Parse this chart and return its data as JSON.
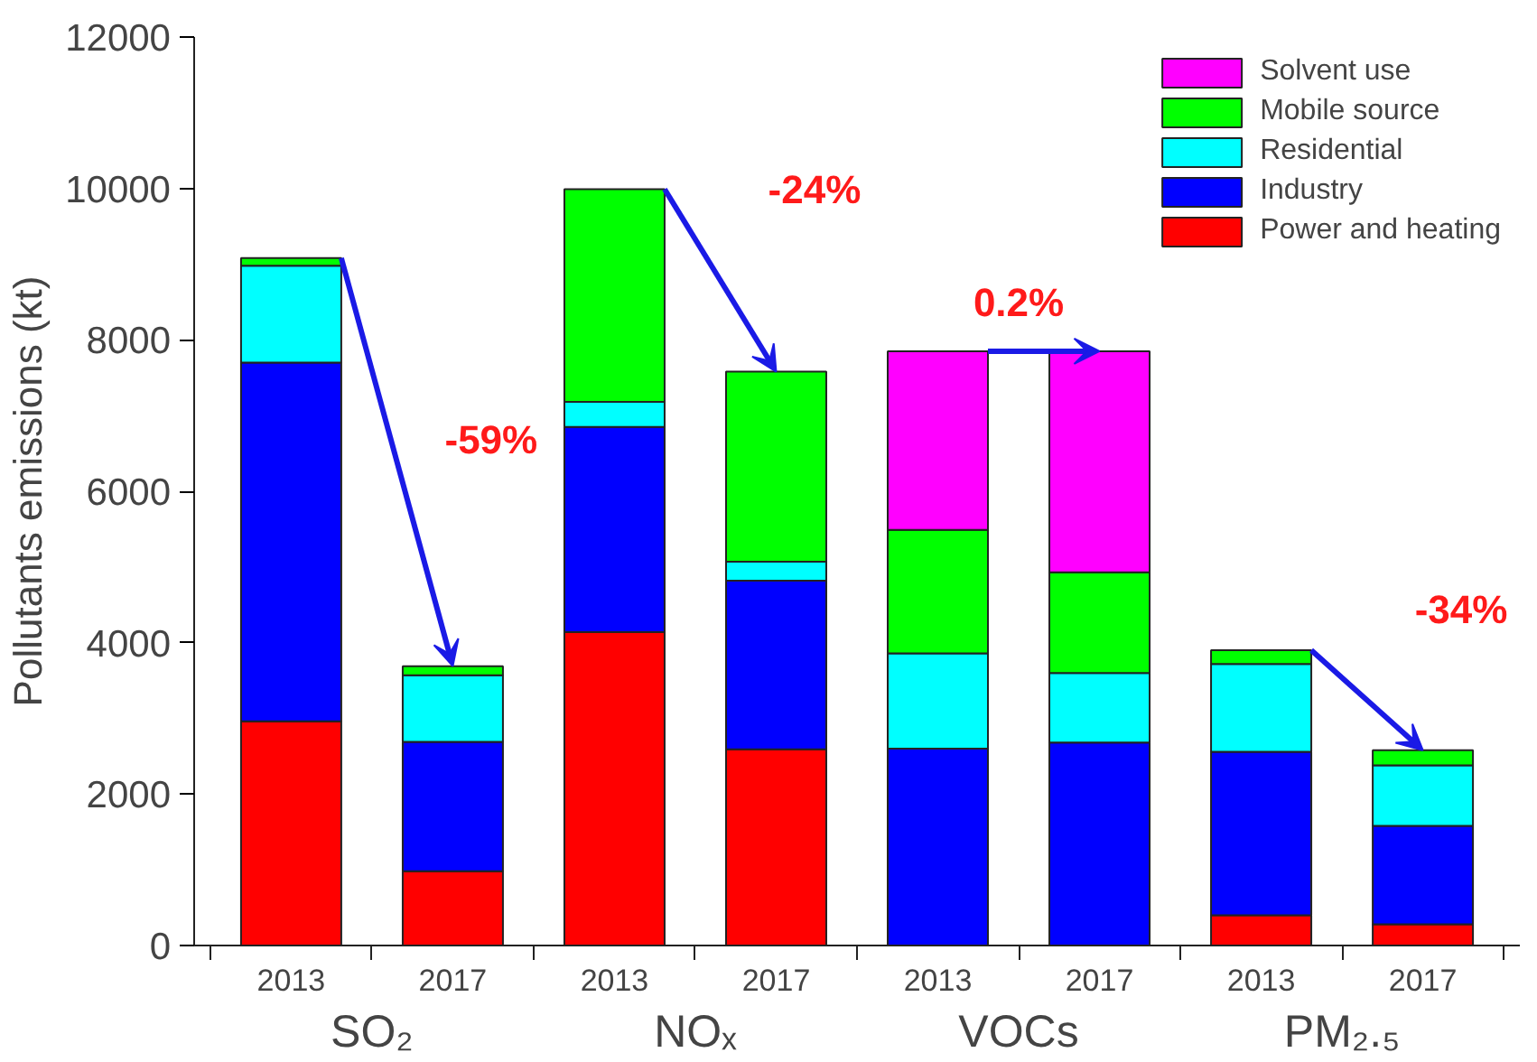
{
  "chart_data": {
    "type": "bar",
    "stacked": true,
    "ylabel": "Pollutants emissions (kt)",
    "categories": [
      "2013",
      "2017",
      "2013",
      "2017",
      "2013",
      "2017",
      "2013",
      "2017"
    ],
    "series": [
      {
        "name": "Power and heating",
        "color": "#ff0000",
        "values": [
          2960,
          980,
          4140,
          2590,
          null,
          null,
          400,
          280
        ]
      },
      {
        "name": "Industry",
        "color": "#0000ff",
        "values": [
          4740,
          1710,
          2710,
          2230,
          2600,
          2680,
          2160,
          1300
        ]
      },
      {
        "name": "Residential",
        "color": "#00ffff",
        "values": [
          1280,
          880,
          330,
          250,
          1260,
          920,
          1160,
          800
        ]
      },
      {
        "name": "Mobile source",
        "color": "#00ff00",
        "values": [
          100,
          120,
          2810,
          2510,
          1630,
          1330,
          180,
          200
        ]
      },
      {
        "name": "Solvent use",
        "color": "#ff00ff",
        "values": [
          0,
          0,
          0,
          0,
          2360,
          2920,
          0,
          0
        ]
      }
    ],
    "ylim": [
      0,
      12000
    ],
    "yticks": [
      0,
      2000,
      4000,
      6000,
      8000,
      10000,
      12000
    ],
    "legend": "top right",
    "grid": false,
    "annotations": [
      "SO₂",
      "NOₓ",
      "VOCs",
      "PM₂.₅",
      "-59%",
      "-24%",
      "0.2%",
      "-34%"
    ]
  }
}
